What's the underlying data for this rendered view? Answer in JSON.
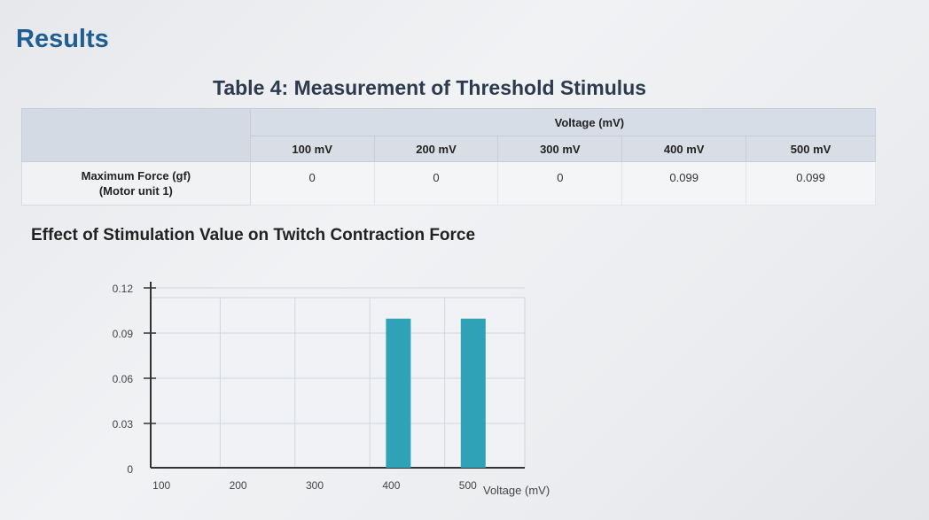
{
  "page": {
    "heading": "Results"
  },
  "table": {
    "title": "Table 4: Measurement of Threshold Stimulus",
    "group_header": "Voltage (mV)",
    "columns": [
      "100 mV",
      "200 mV",
      "300 mV",
      "400 mV",
      "500 mV"
    ],
    "row_label_line1": "Maximum Force (gf)",
    "row_label_line2": "(Motor unit 1)",
    "values": [
      "0",
      "0",
      "0",
      "0.099",
      "0.099"
    ]
  },
  "chart_data": {
    "type": "bar",
    "title": "Effect of Stimulation Value on Twitch Contraction Force",
    "xlabel": "Voltage (mV)",
    "ylabel": "",
    "categories": [
      "100",
      "200",
      "300",
      "400",
      "500"
    ],
    "values": [
      0,
      0,
      0,
      0.099,
      0.099
    ],
    "y_ticks": [
      "0",
      "0.03",
      "0.06",
      "0.09",
      "0.12"
    ],
    "y_tick_values": [
      0,
      0.03,
      0.06,
      0.09,
      0.12
    ],
    "ylim": [
      0,
      0.12
    ],
    "grid": true,
    "bar_color": "#2fa2b8"
  },
  "colors": {
    "heading": "#1f5e93",
    "table_header_bg": "#d7dde6",
    "bar": "#2fa2b8"
  }
}
